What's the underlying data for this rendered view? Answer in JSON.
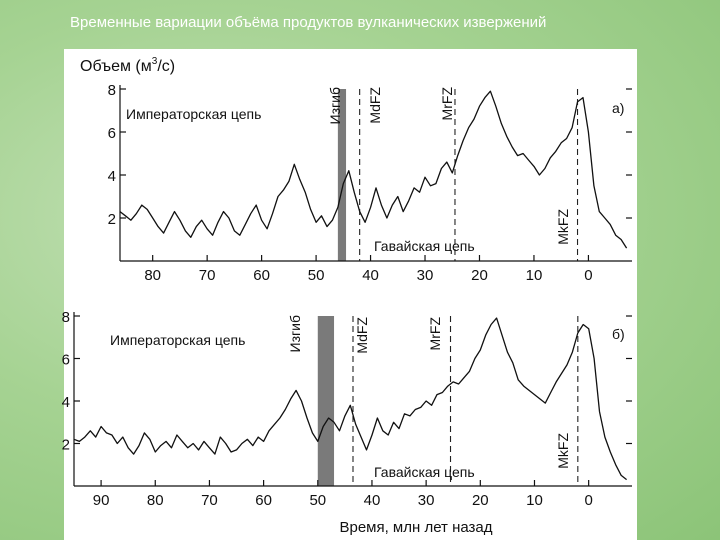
{
  "slide": {
    "title": "Временные вариации объёма продуктов вулканических извержений"
  },
  "figure": {
    "ylabel_main": "Объем (м",
    "ylabel_sup": "3",
    "ylabel_end": "/с)",
    "xlabel": "Время, млн лет назад"
  },
  "chart_data": [
    {
      "type": "line",
      "panel_label": "а)",
      "xlim": [
        86,
        -8
      ],
      "ylim": [
        0,
        8
      ],
      "x_ticks": [
        80,
        70,
        60,
        50,
        40,
        30,
        20,
        10,
        0
      ],
      "x_tick_labels": [
        "80",
        "70",
        "60",
        "50",
        "40",
        "30",
        "20",
        "10",
        "0"
      ],
      "y_ticks": [
        2,
        4,
        6,
        8
      ],
      "y_tick_labels": [
        "2",
        "4",
        "6",
        "8"
      ],
      "annotations": {
        "emperor": "Императорская цепь",
        "hawaii": "Гавайская цепь",
        "bend": "Изгиб",
        "mdfz": "MdFZ",
        "mrfz": "MrFZ",
        "mkfz": "MkFZ"
      },
      "bend_band": [
        46,
        44.5
      ],
      "dashed_lines": [
        {
          "x": 42,
          "label": "MdFZ"
        },
        {
          "x": 24.5,
          "label": "MrFZ"
        },
        {
          "x": 2,
          "label": "MkFZ"
        }
      ],
      "x": [
        86,
        85,
        84,
        83,
        82,
        81,
        80,
        79,
        78,
        77,
        76,
        75,
        74,
        73,
        72,
        71,
        70,
        69,
        68,
        67,
        66,
        65,
        64,
        63,
        62,
        61,
        60,
        59,
        58,
        57,
        56,
        55,
        54,
        53,
        52,
        51,
        50,
        49,
        48,
        47,
        46,
        45,
        44,
        43,
        42,
        41,
        40,
        39,
        38,
        37,
        36,
        35,
        34,
        33,
        32,
        31,
        30,
        29,
        28,
        27,
        26,
        25,
        24,
        23,
        22,
        21,
        20,
        19,
        18,
        17,
        16,
        15,
        14,
        13,
        12,
        11,
        10,
        9,
        8,
        7,
        6,
        5,
        4,
        3,
        2,
        1,
        0,
        -1,
        -2,
        -3,
        -4,
        -5,
        -6,
        -7
      ],
      "y": [
        2.3,
        2.1,
        1.9,
        2.2,
        2.6,
        2.4,
        2.0,
        1.6,
        1.3,
        1.8,
        2.3,
        1.9,
        1.4,
        1.1,
        1.6,
        1.9,
        1.5,
        1.2,
        1.8,
        2.3,
        2.0,
        1.4,
        1.2,
        1.7,
        2.2,
        2.6,
        1.9,
        1.5,
        2.2,
        3.0,
        3.3,
        3.7,
        4.5,
        3.8,
        3.2,
        2.4,
        1.8,
        2.1,
        1.6,
        1.9,
        2.5,
        3.6,
        4.2,
        3.2,
        2.3,
        1.8,
        2.5,
        3.4,
        2.6,
        2.0,
        2.6,
        3.0,
        2.3,
        2.8,
        3.4,
        3.2,
        3.9,
        3.5,
        3.6,
        4.3,
        4.6,
        4.1,
        4.9,
        5.6,
        6.2,
        6.6,
        7.2,
        7.6,
        7.9,
        7.2,
        6.4,
        5.8,
        5.3,
        4.9,
        5.0,
        4.7,
        4.4,
        4.0,
        4.3,
        4.8,
        5.1,
        5.5,
        5.7,
        6.2,
        7.4,
        7.6,
        6.0,
        3.5,
        2.3,
        2.0,
        1.7,
        1.2,
        1.0,
        0.6
      ]
    },
    {
      "type": "line",
      "panel_label": "б)",
      "xlim": [
        95,
        -8
      ],
      "ylim": [
        0,
        8
      ],
      "x_ticks": [
        90,
        80,
        70,
        60,
        50,
        40,
        30,
        20,
        10,
        0
      ],
      "x_tick_labels": [
        "90",
        "80",
        "70",
        "60",
        "50",
        "40",
        "30",
        "20",
        "10",
        "0"
      ],
      "y_ticks": [
        2,
        4,
        6,
        8
      ],
      "y_tick_labels": [
        "2",
        "4",
        "6",
        "8"
      ],
      "annotations": {
        "emperor": "Императорская цепь",
        "hawaii": "Гавайская цепь",
        "bend": "Изгиб",
        "mdfz": "MdFZ",
        "mrfz": "MrFZ",
        "mkfz": "MkFZ"
      },
      "bend_band": [
        50,
        47
      ],
      "dashed_lines": [
        {
          "x": 43.5,
          "label": "MdFZ"
        },
        {
          "x": 25.5,
          "label": "MrFZ"
        },
        {
          "x": 2,
          "label": "MkFZ"
        }
      ],
      "x": [
        95,
        94,
        93,
        92,
        91,
        90,
        89,
        88,
        87,
        86,
        85,
        84,
        83,
        82,
        81,
        80,
        79,
        78,
        77,
        76,
        75,
        74,
        73,
        72,
        71,
        70,
        69,
        68,
        67,
        66,
        65,
        64,
        63,
        62,
        61,
        60,
        59,
        58,
        57,
        56,
        55,
        54,
        53,
        52,
        51,
        50,
        49,
        48,
        47,
        46,
        45,
        44,
        43,
        42,
        41,
        40,
        39,
        38,
        37,
        36,
        35,
        34,
        33,
        32,
        31,
        30,
        29,
        28,
        27,
        26,
        25,
        24,
        23,
        22,
        21,
        20,
        19,
        18,
        17,
        16,
        15,
        14,
        13,
        12,
        11,
        10,
        9,
        8,
        7,
        6,
        5,
        4,
        3,
        2,
        1,
        0,
        -1,
        -2,
        -3,
        -4,
        -5,
        -6,
        -7
      ],
      "y": [
        2.2,
        2.1,
        2.3,
        2.6,
        2.3,
        2.8,
        2.5,
        2.4,
        2.0,
        2.3,
        1.8,
        1.5,
        1.9,
        2.5,
        2.2,
        1.6,
        1.9,
        2.1,
        1.8,
        2.4,
        2.1,
        1.8,
        2.0,
        1.7,
        2.1,
        1.8,
        1.5,
        2.3,
        2.0,
        1.6,
        1.7,
        2.0,
        2.2,
        1.9,
        2.3,
        2.1,
        2.6,
        2.9,
        3.2,
        3.6,
        4.1,
        4.5,
        4.0,
        3.2,
        2.5,
        2.1,
        2.8,
        3.2,
        3.0,
        2.6,
        3.3,
        3.8,
        2.9,
        2.3,
        1.7,
        2.4,
        3.2,
        2.6,
        2.4,
        3.0,
        2.7,
        3.4,
        3.3,
        3.6,
        3.7,
        4.0,
        3.8,
        4.3,
        4.4,
        4.7,
        4.9,
        4.8,
        5.1,
        5.4,
        6.0,
        6.4,
        7.1,
        7.6,
        7.9,
        7.1,
        6.3,
        5.8,
        5.0,
        4.7,
        4.5,
        4.3,
        4.1,
        3.9,
        4.4,
        4.9,
        5.3,
        5.7,
        6.3,
        7.2,
        7.6,
        7.4,
        6.0,
        3.5,
        2.3,
        1.6,
        1.0,
        0.5,
        0.3
      ]
    }
  ]
}
